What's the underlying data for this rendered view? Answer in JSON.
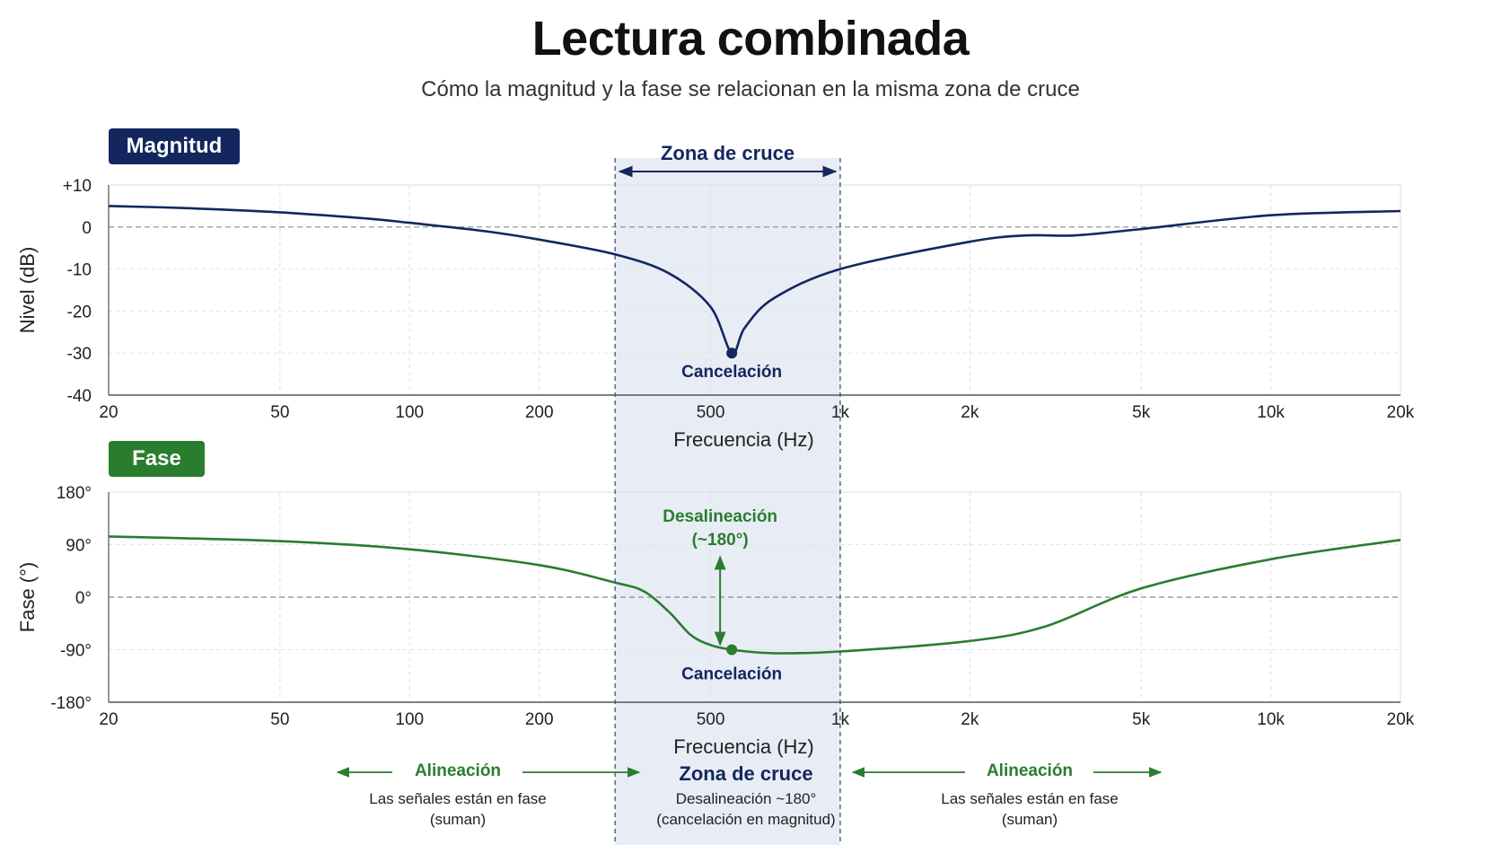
{
  "title": "Lectura combinada",
  "subtitle": "Cómo la magnitud y la fase se relacionan en la misma zona de cruce",
  "colors": {
    "magnitude": "#13275e",
    "phase": "#2a7d2e",
    "zone_fill": "#e8ecf5"
  },
  "zone": {
    "label": "Zona de cruce",
    "start_hz": 300,
    "end_hz": 1000
  },
  "chart_data": [
    {
      "type": "line",
      "badge": "Magnitud",
      "xlabel": "Frecuencia (Hz)",
      "ylabel": "Nivel (dB)",
      "x_scale": "log",
      "xlim": [
        20,
        20000
      ],
      "ylim": [
        -40,
        10
      ],
      "x_ticks": [
        20,
        50,
        100,
        200,
        500,
        1000,
        2000,
        5000,
        10000,
        20000
      ],
      "x_tick_labels": [
        "20",
        "50",
        "100",
        "200",
        "500",
        "1k",
        "2k",
        "5k",
        "10k",
        "20k"
      ],
      "y_ticks": [
        10,
        0,
        -10,
        -20,
        -30,
        -40
      ],
      "y_tick_labels": [
        "+10",
        "0",
        "-10",
        "-20",
        "-30",
        "-40"
      ],
      "grid": true,
      "series": [
        {
          "x": [
            20,
            30,
            50,
            80,
            100,
            150,
            200,
            300,
            400,
            500,
            560,
            600,
            700,
            1000,
            2000,
            2700,
            3500,
            5000,
            10000,
            20000
          ],
          "values": [
            5,
            4.5,
            3.5,
            2,
            1,
            -1,
            -3,
            -6.5,
            -11,
            -19,
            -30,
            -24,
            -17,
            -10,
            -3.5,
            -2,
            -2,
            -0.5,
            2.8,
            3.8
          ]
        }
      ],
      "annotations": [
        {
          "label": "Cancelación",
          "x": 560,
          "y": -30
        }
      ]
    },
    {
      "type": "line",
      "badge": "Fase",
      "xlabel": "Frecuencia (Hz)",
      "ylabel": "Fase (°)",
      "x_scale": "log",
      "xlim": [
        20,
        20000
      ],
      "ylim": [
        -180,
        180
      ],
      "x_ticks": [
        20,
        50,
        100,
        200,
        500,
        1000,
        2000,
        5000,
        10000,
        20000
      ],
      "x_tick_labels": [
        "20",
        "50",
        "100",
        "200",
        "500",
        "1k",
        "2k",
        "5k",
        "10k",
        "20k"
      ],
      "y_ticks": [
        180,
        90,
        0,
        -90,
        -180
      ],
      "y_tick_labels": [
        "180°",
        "90°",
        "0°",
        "-90°",
        "-180°"
      ],
      "grid": true,
      "series": [
        {
          "x": [
            20,
            50,
            100,
            200,
            300,
            350,
            400,
            450,
            500,
            560,
            700,
            1000,
            2000,
            3000,
            5000,
            10000,
            20000
          ],
          "values": [
            104,
            96,
            82,
            55,
            25,
            10,
            -25,
            -65,
            -82,
            -90,
            -96,
            -93,
            -75,
            -50,
            15,
            65,
            98
          ]
        }
      ],
      "annotations": [
        {
          "label": "Desalineación",
          "sublabel": "(~180°)"
        },
        {
          "label": "Cancelación",
          "x": 560,
          "y": -90
        }
      ]
    }
  ],
  "bottom": {
    "left": {
      "title": "Alineación",
      "line1": "Las señales están en fase",
      "line2": "(suman)"
    },
    "center": {
      "title": "Zona de cruce",
      "line1": "Desalineación ~180°",
      "line2": "(cancelación en magnitud)"
    },
    "right": {
      "title": "Alineación",
      "line1": "Las señales están en fase",
      "line2": "(suman)"
    }
  }
}
